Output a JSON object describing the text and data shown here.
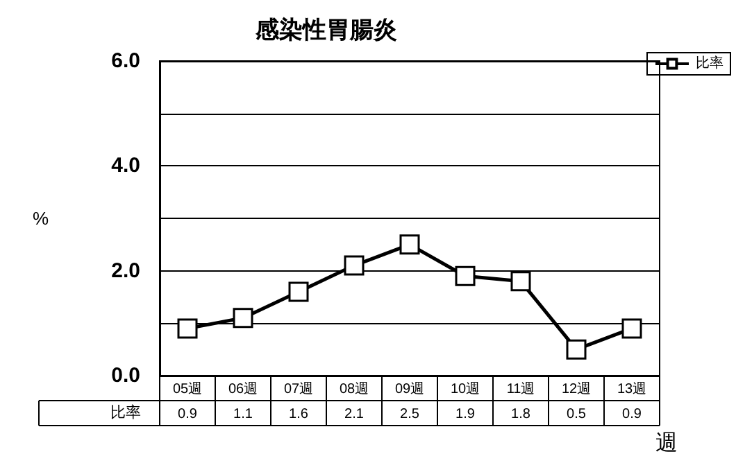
{
  "chart_data": {
    "type": "line",
    "title": "感染性胃腸炎",
    "ylabel": "%",
    "xlabel": "週",
    "categories": [
      "05週",
      "06週",
      "07週",
      "08週",
      "09週",
      "10週",
      "11週",
      "12週",
      "13週"
    ],
    "series": [
      {
        "name": "比率",
        "color": "#000000",
        "values": [
          0.9,
          1.1,
          1.6,
          2.1,
          2.5,
          1.9,
          1.8,
          0.5,
          0.9
        ]
      }
    ],
    "ylim": [
      0,
      6
    ],
    "yticks": [
      {
        "value": 0,
        "label": "0.0"
      },
      {
        "value": 1,
        "label": null
      },
      {
        "value": 2,
        "label": "2.0"
      },
      {
        "value": 3,
        "label": null
      },
      {
        "value": 4,
        "label": "4.0"
      },
      {
        "value": 5,
        "label": null
      },
      {
        "value": 6,
        "label": "6.0"
      }
    ],
    "grid": "y",
    "legend": "top right",
    "marker": "square",
    "line_style": "solid",
    "data_labels": true
  }
}
